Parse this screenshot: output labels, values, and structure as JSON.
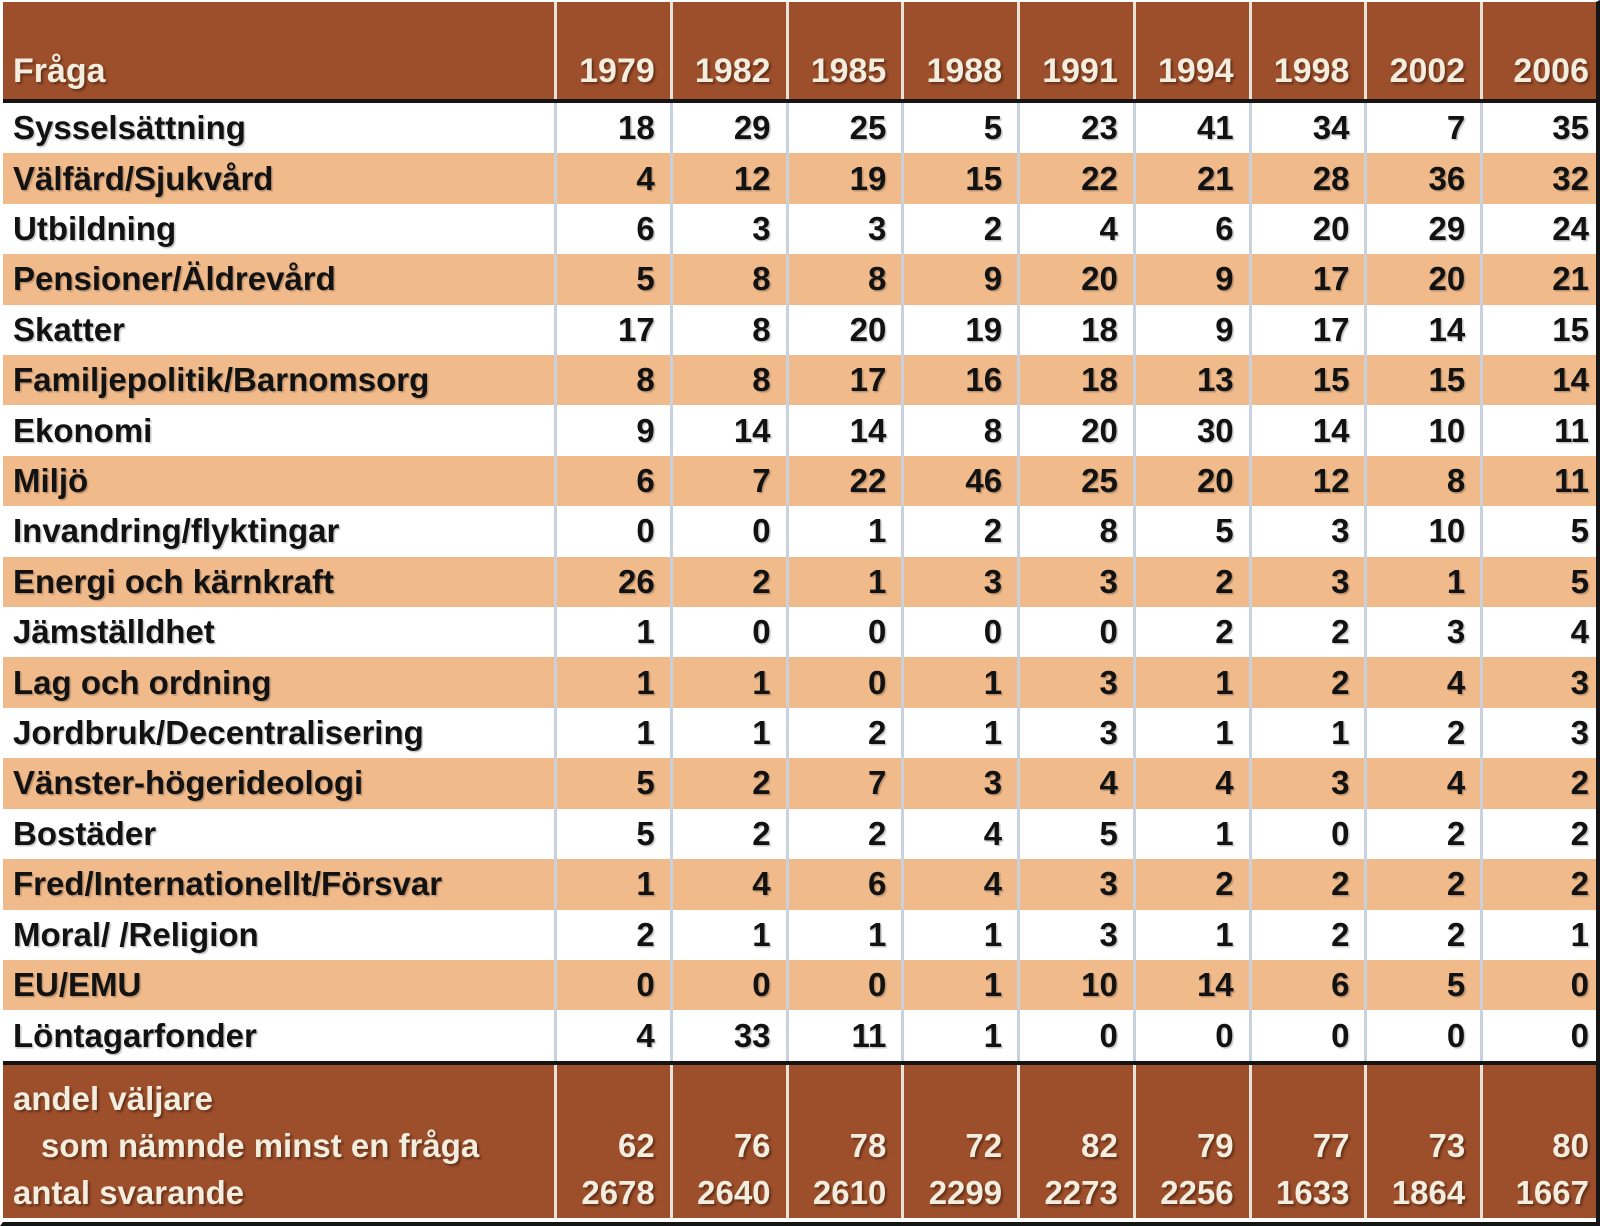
{
  "chart_data": {
    "type": "table",
    "title": "",
    "columns": [
      "Fråga",
      "1979",
      "1982",
      "1985",
      "1988",
      "1991",
      "1994",
      "1998",
      "2002",
      "2006"
    ],
    "rows": [
      {
        "label": "Sysselsättning",
        "values": [
          18,
          29,
          25,
          5,
          23,
          41,
          34,
          7,
          35
        ]
      },
      {
        "label": "Välfärd/Sjukvård",
        "values": [
          4,
          12,
          19,
          15,
          22,
          21,
          28,
          36,
          32
        ]
      },
      {
        "label": "Utbildning",
        "values": [
          6,
          3,
          3,
          2,
          4,
          6,
          20,
          29,
          24
        ]
      },
      {
        "label": "Pensioner/Äldrevård",
        "values": [
          5,
          8,
          8,
          9,
          20,
          9,
          17,
          20,
          21
        ]
      },
      {
        "label": "Skatter",
        "values": [
          17,
          8,
          20,
          19,
          18,
          9,
          17,
          14,
          15
        ]
      },
      {
        "label": "Familjepolitik/Barnomsorg",
        "values": [
          8,
          8,
          17,
          16,
          18,
          13,
          15,
          15,
          14
        ]
      },
      {
        "label": "Ekonomi",
        "values": [
          9,
          14,
          14,
          8,
          20,
          30,
          14,
          10,
          11
        ]
      },
      {
        "label": "Miljö",
        "values": [
          6,
          7,
          22,
          46,
          25,
          20,
          12,
          8,
          11
        ]
      },
      {
        "label": "Invandring/flyktingar",
        "values": [
          0,
          0,
          1,
          2,
          8,
          5,
          3,
          10,
          5
        ]
      },
      {
        "label": "Energi och kärnkraft",
        "values": [
          26,
          2,
          1,
          3,
          3,
          2,
          3,
          1,
          5
        ]
      },
      {
        "label": "Jämställdhet",
        "values": [
          1,
          0,
          0,
          0,
          0,
          2,
          2,
          3,
          4
        ]
      },
      {
        "label": "Lag och ordning",
        "values": [
          1,
          1,
          0,
          1,
          3,
          1,
          2,
          4,
          3
        ]
      },
      {
        "label": "Jordbruk/Decentralisering",
        "values": [
          1,
          1,
          2,
          1,
          3,
          1,
          1,
          2,
          3
        ]
      },
      {
        "label": "Vänster-högerideologi",
        "values": [
          5,
          2,
          7,
          3,
          4,
          4,
          3,
          4,
          2
        ]
      },
      {
        "label": "Bostäder",
        "values": [
          5,
          2,
          2,
          4,
          5,
          1,
          0,
          2,
          2
        ]
      },
      {
        "label": "Fred/Internationellt/Försvar",
        "values": [
          1,
          4,
          6,
          4,
          3,
          2,
          2,
          2,
          2
        ]
      },
      {
        "label": "Moral/ /Religion",
        "values": [
          2,
          1,
          1,
          1,
          3,
          1,
          2,
          2,
          1
        ]
      },
      {
        "label": "EU/EMU",
        "values": [
          0,
          0,
          0,
          1,
          10,
          14,
          6,
          5,
          0
        ]
      },
      {
        "label": "Löntagarfonder",
        "values": [
          4,
          33,
          11,
          1,
          0,
          0,
          0,
          0,
          0
        ]
      }
    ],
    "footer": {
      "line1_label": "andel väljare",
      "line2_label": "som nämnde minst en fråga",
      "line2_values": [
        62,
        76,
        78,
        72,
        82,
        79,
        77,
        73,
        80
      ],
      "line3_label": "antal svarande",
      "line3_values": [
        2678,
        2640,
        2610,
        2299,
        2273,
        2256,
        1633,
        1864,
        1667
      ]
    },
    "layout": {
      "row_striping": "alternating white and peach",
      "header_position": "top",
      "footer_position": "bottom"
    }
  },
  "colors": {
    "header_brown": "#9D4F2C",
    "row_peach": "#F0BA8B",
    "row_white": "#FFFFFF",
    "header_text_cream": "#F2EDDE",
    "body_text_black": "#121212",
    "data_column_separator": "#C9D1DC",
    "header_footer_separator": "#E6E2D8",
    "divider_black": "#151515"
  }
}
